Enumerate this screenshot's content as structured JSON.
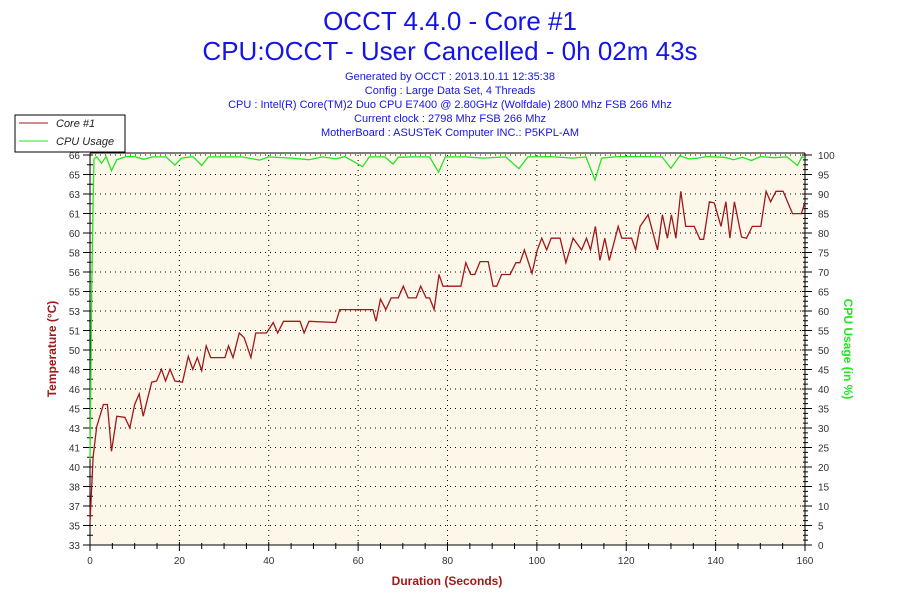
{
  "chart_data": {
    "type": "line",
    "title": "OCCT 4.4.0 - Core #1",
    "subtitle": "CPU:OCCT - User Cancelled - 0h 02m 43s",
    "info_lines": [
      "Generated by OCCT : 2013.10.11 12:35:38",
      "Config : Large Data Set, 4 Threads",
      "CPU : Intel(R) Core(TM)2 Duo CPU E7400 @ 2.80GHz (Wolfdale) 2800 Mhz FSB 266 Mhz",
      "Current clock : 2798 Mhz FSB 266 Mhz",
      "MotherBoard : ASUSTeK Computer INC.: P5KPL-AM"
    ],
    "xlabel": "Duration (Seconds)",
    "ylabel": "Temperature (°C)",
    "y2label": "CPU Usage (in %)",
    "xlim": [
      0,
      160
    ],
    "ylim": [
      33.3,
      66.6
    ],
    "y2lim": [
      0,
      100
    ],
    "x_ticks": [
      "0",
      "20",
      "40",
      "60",
      "80",
      "100",
      "120",
      "140",
      "160"
    ],
    "y_ticks": [
      "33",
      "35",
      "37",
      "38",
      "40",
      "41",
      "43",
      "45",
      "46",
      "48",
      "50",
      "51",
      "53",
      "55",
      "56",
      "58",
      "60",
      "61",
      "63",
      "65",
      "66"
    ],
    "y2_ticks": [
      "0",
      "5",
      "10",
      "15",
      "20",
      "25",
      "30",
      "35",
      "40",
      "45",
      "50",
      "55",
      "60",
      "65",
      "70",
      "75",
      "80",
      "85",
      "90",
      "95",
      "100"
    ],
    "grid": true,
    "legend_placement": "top-left",
    "colors": {
      "background": "#fdf7ea",
      "core": "#a01818",
      "cpu": "#22e622",
      "title": "#1414e6",
      "xlabel": "#a01818",
      "ylabel": "#a01818",
      "y2label": "#22e622"
    },
    "series": [
      {
        "name": "Core #1",
        "axis": "left",
        "points": [
          [
            0,
            35.2
          ],
          [
            0.7,
            40.8
          ],
          [
            1.5,
            43.4
          ],
          [
            3,
            45.3
          ],
          [
            3.9,
            45.3
          ],
          [
            4.8,
            41.3
          ],
          [
            6,
            44.3
          ],
          [
            7.8,
            44.2
          ],
          [
            8.9,
            43.3
          ],
          [
            10,
            45.3
          ],
          [
            11,
            46.2
          ],
          [
            11.9,
            44.3
          ],
          [
            13.8,
            47.2
          ],
          [
            14.9,
            47.3
          ],
          [
            16,
            48.3
          ],
          [
            16.9,
            47.3
          ],
          [
            17.9,
            48.3
          ],
          [
            19,
            47.3
          ],
          [
            20.7,
            47.2
          ],
          [
            22,
            49.4
          ],
          [
            23,
            48.3
          ],
          [
            24,
            49.3
          ],
          [
            25,
            48.2
          ],
          [
            26,
            50.3
          ],
          [
            27,
            49.3
          ],
          [
            30.2,
            49.3
          ],
          [
            31,
            50.3
          ],
          [
            32,
            49.3
          ],
          [
            33.4,
            51.4
          ],
          [
            34.5,
            51
          ],
          [
            36,
            49.3
          ],
          [
            37.1,
            51.4
          ],
          [
            39.5,
            51.4
          ],
          [
            41,
            52.3
          ],
          [
            42,
            51.4
          ],
          [
            43.3,
            52.4
          ],
          [
            47,
            52.4
          ],
          [
            47.9,
            51.4
          ],
          [
            49,
            52.4
          ],
          [
            55,
            52.3
          ],
          [
            55.9,
            53.4
          ],
          [
            63.3,
            53.4
          ],
          [
            64,
            52.4
          ],
          [
            65,
            54.3
          ],
          [
            66.2,
            53.4
          ],
          [
            67.4,
            54.4
          ],
          [
            69,
            54.4
          ],
          [
            70.1,
            55.4
          ],
          [
            71.2,
            54.4
          ],
          [
            73,
            54.4
          ],
          [
            74,
            55.4
          ],
          [
            75.2,
            54.4
          ],
          [
            76,
            54.4
          ],
          [
            77,
            53.4
          ],
          [
            78.1,
            56.4
          ],
          [
            79,
            55.4
          ],
          [
            83,
            55.4
          ],
          [
            84.1,
            57.4
          ],
          [
            85.2,
            56.4
          ],
          [
            86.1,
            56.4
          ],
          [
            87.3,
            57.5
          ],
          [
            89.1,
            57.5
          ],
          [
            90.2,
            55.4
          ],
          [
            91,
            55.4
          ],
          [
            92.1,
            56.4
          ],
          [
            94,
            56.4
          ],
          [
            95.3,
            57.4
          ],
          [
            96.2,
            57.4
          ],
          [
            97.2,
            58.5
          ],
          [
            98.9,
            56.5
          ],
          [
            100.1,
            58.5
          ],
          [
            101.1,
            59.5
          ],
          [
            102.2,
            58.5
          ],
          [
            103.2,
            59.5
          ],
          [
            105.2,
            59.5
          ],
          [
            106.5,
            57.4
          ],
          [
            108.1,
            59.5
          ],
          [
            110,
            58.5
          ],
          [
            111.1,
            59.5
          ],
          [
            112,
            58.5
          ],
          [
            113.1,
            60.5
          ],
          [
            114.1,
            57.6
          ],
          [
            115.2,
            59.5
          ],
          [
            116.2,
            57.6
          ],
          [
            118.2,
            60.5
          ],
          [
            119,
            59.5
          ],
          [
            121.2,
            59.5
          ],
          [
            122.1,
            58.5
          ],
          [
            123.1,
            60.5
          ],
          [
            124.9,
            61.5
          ],
          [
            127,
            58.5
          ],
          [
            128.1,
            61.5
          ],
          [
            129.2,
            59.5
          ],
          [
            130.1,
            61.5
          ],
          [
            131.1,
            59.5
          ],
          [
            132.2,
            63.5
          ],
          [
            133.3,
            60.5
          ],
          [
            135.2,
            60.5
          ],
          [
            136.5,
            59.4
          ],
          [
            137.3,
            59.4
          ],
          [
            138.6,
            62.6
          ],
          [
            139.7,
            62.5
          ],
          [
            141.2,
            60.5
          ],
          [
            142.3,
            62.6
          ],
          [
            143.2,
            59.5
          ],
          [
            144.2,
            62.6
          ],
          [
            145.8,
            59.6
          ],
          [
            146.9,
            59.5
          ],
          [
            148.2,
            60.5
          ],
          [
            150.1,
            60.5
          ],
          [
            151.3,
            63.5
          ],
          [
            152.3,
            62.6
          ],
          [
            153.5,
            63.5
          ],
          [
            155.1,
            63.5
          ],
          [
            157.2,
            61.6
          ],
          [
            159.2,
            61.6
          ],
          [
            160,
            62.6
          ]
        ]
      },
      {
        "name": "CPU Usage",
        "axis": "right",
        "points": [
          [
            0,
            22
          ],
          [
            0.4,
            67
          ],
          [
            0.7,
            88
          ],
          [
            0.9,
            99
          ],
          [
            1.5,
            99.5
          ],
          [
            2.6,
            97.9
          ],
          [
            3.6,
            99.6
          ],
          [
            4.8,
            96
          ],
          [
            6,
            98.8
          ],
          [
            8,
            99.6
          ],
          [
            10,
            99.6
          ],
          [
            12,
            98.9
          ],
          [
            14,
            99.5
          ],
          [
            17,
            99.5
          ],
          [
            19,
            97.4
          ],
          [
            20.5,
            99.2
          ],
          [
            23,
            99.6
          ],
          [
            25,
            97.3
          ],
          [
            26.5,
            99.5
          ],
          [
            30,
            99.5
          ],
          [
            34,
            99.5
          ],
          [
            38,
            98.7
          ],
          [
            40,
            99.5
          ],
          [
            45,
            99.2
          ],
          [
            49,
            98.8
          ],
          [
            52,
            99.5
          ],
          [
            55,
            99
          ],
          [
            57,
            99.6
          ],
          [
            61,
            97
          ],
          [
            62.5,
            99.5
          ],
          [
            66,
            99.5
          ],
          [
            67.8,
            97.7
          ],
          [
            69,
            99.4
          ],
          [
            72,
            99.5
          ],
          [
            76,
            99.5
          ],
          [
            78,
            95.6
          ],
          [
            79.5,
            99.5
          ],
          [
            84,
            99.5
          ],
          [
            88,
            99.2
          ],
          [
            93,
            99.5
          ],
          [
            96,
            96.5
          ],
          [
            98,
            99.5
          ],
          [
            103,
            99.6
          ],
          [
            108,
            99.2
          ],
          [
            111,
            99.5
          ],
          [
            113,
            93.6
          ],
          [
            114.5,
            99.2
          ],
          [
            118,
            99.6
          ],
          [
            124,
            99.6
          ],
          [
            128,
            99.5
          ],
          [
            130,
            96.6
          ],
          [
            132,
            99.8
          ],
          [
            134,
            99
          ],
          [
            136,
            99.2
          ],
          [
            138,
            99.6
          ],
          [
            142,
            99.4
          ],
          [
            144,
            98.8
          ],
          [
            146,
            99.4
          ],
          [
            148,
            98.6
          ],
          [
            150,
            99.6
          ],
          [
            153,
            99.3
          ],
          [
            156,
            99.5
          ],
          [
            158.3,
            97.3
          ],
          [
            159.3,
            99.5
          ],
          [
            160,
            99.3
          ]
        ]
      }
    ]
  }
}
